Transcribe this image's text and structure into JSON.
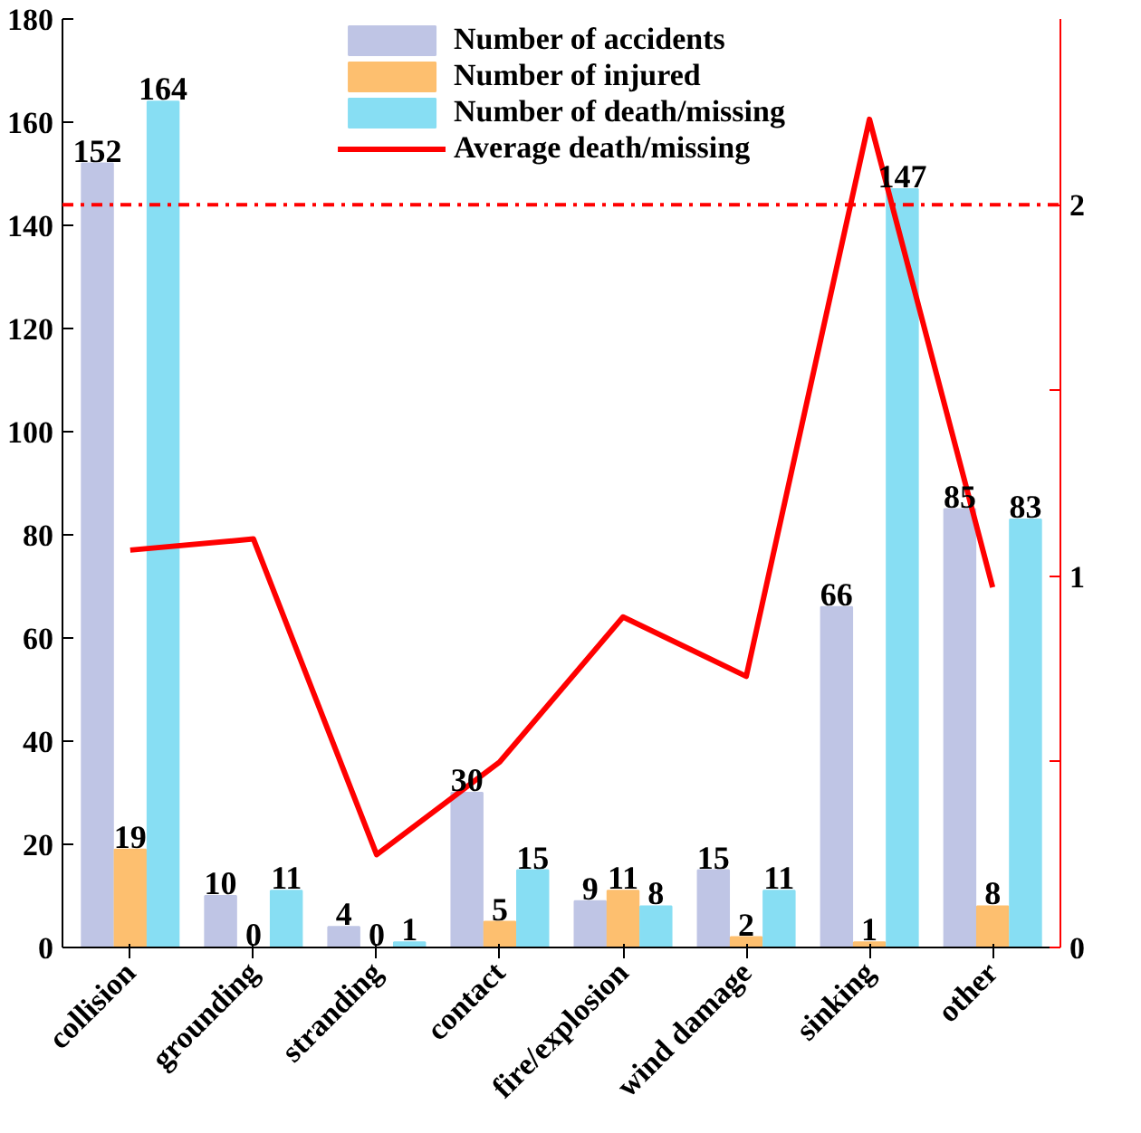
{
  "chart_data": {
    "type": "bar",
    "categories": [
      "collision",
      "grounding",
      "stranding",
      "contact",
      "fire/explosion",
      "wind damage",
      "sinking",
      "other"
    ],
    "series": [
      {
        "name": "Number of accidents",
        "color": "#bfc5e5",
        "values": [
          152,
          10,
          4,
          30,
          9,
          15,
          66,
          85
        ],
        "value_labels": [
          "152",
          "10",
          "4",
          "30",
          "9",
          "15",
          "66",
          "85"
        ]
      },
      {
        "name": "Number of injured",
        "color": "#fdbf6f",
        "values": [
          19,
          0,
          0,
          5,
          11,
          2,
          1,
          8
        ],
        "value_labels": [
          "19",
          "0",
          "0",
          "5",
          "11",
          "2",
          "1",
          "8"
        ]
      },
      {
        "name": "Number of death/missing",
        "color": "#87def3",
        "values": [
          164,
          11,
          1,
          15,
          8,
          11,
          147,
          83
        ],
        "value_labels": [
          "164",
          "11",
          "1",
          "15",
          "8",
          "11",
          "147",
          "83"
        ]
      },
      {
        "name": "Average death/missing",
        "type": "line",
        "axis": "y2",
        "color": "#ff0000",
        "values": [
          1.07,
          1.1,
          0.25,
          0.5,
          0.89,
          0.73,
          2.23,
          0.97
        ]
      }
    ],
    "ylim": [
      0,
      180
    ],
    "yticks": [
      0,
      20,
      40,
      60,
      80,
      100,
      120,
      140,
      160,
      180
    ],
    "y2lim": [
      0,
      2.5
    ],
    "y2ticks": [
      0,
      {
        "value": 0.5,
        "label": null
      },
      1,
      {
        "value": 1.5,
        "label": null
      },
      2
    ],
    "ref_lines": [
      {
        "axis": "y2",
        "value": 2,
        "label": null,
        "color": "#ff0000",
        "line_style": "dashdot"
      }
    ],
    "grid": false,
    "legend": "top"
  }
}
